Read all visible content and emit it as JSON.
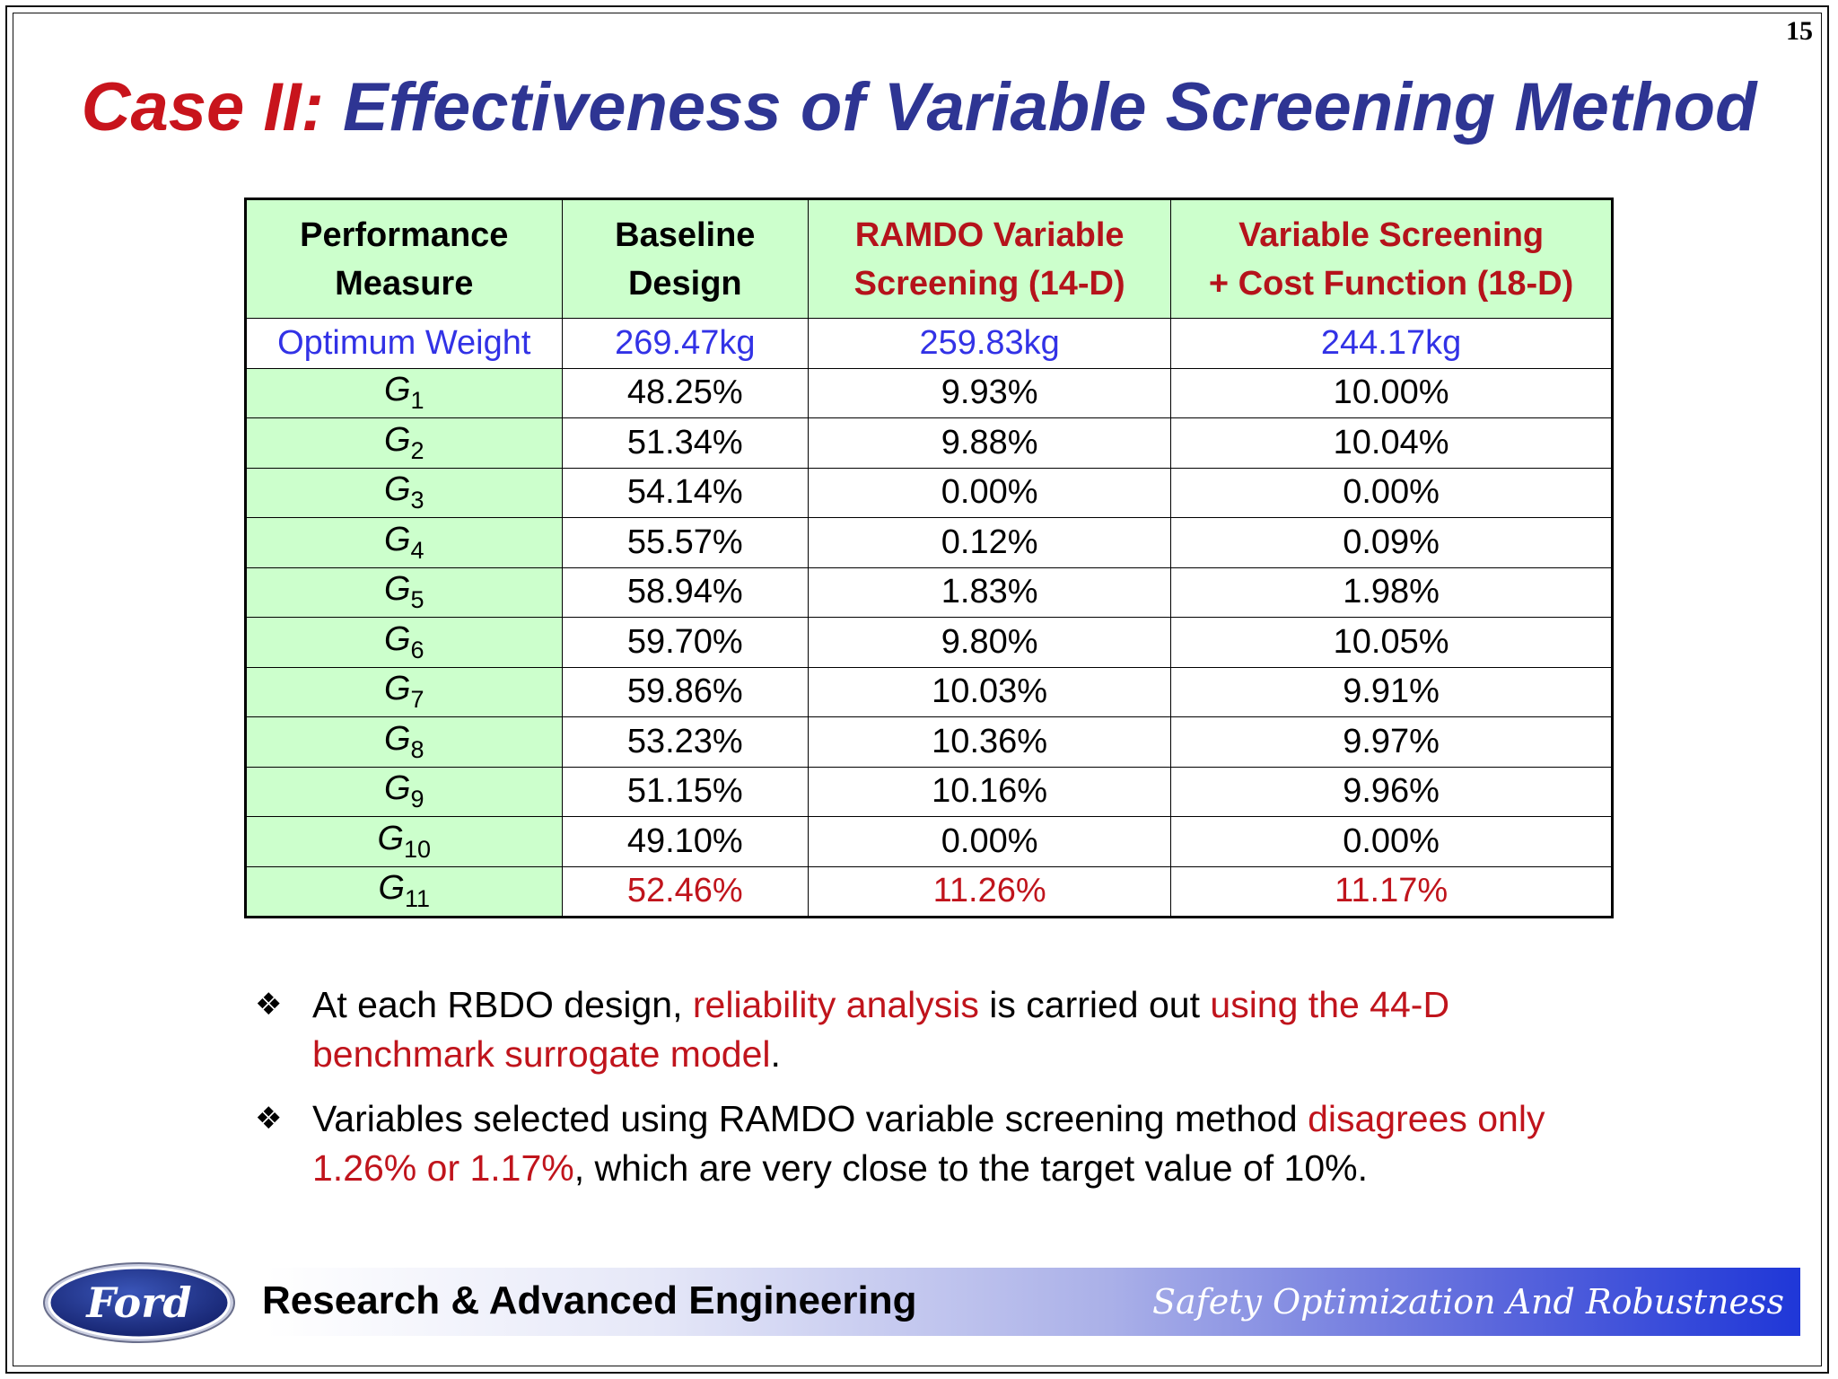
{
  "page_number": "15",
  "title": {
    "part1": "Case II:",
    "part2": "Effectiveness of Variable Screening Method"
  },
  "table": {
    "headers": [
      {
        "line1": "Performance",
        "line2": "Measure"
      },
      {
        "line1": "Baseline",
        "line2": "Design"
      },
      {
        "line1": "RAMDO Variable",
        "line2": "Screening (14-D)"
      },
      {
        "line1": "Variable Screening",
        "line2": "+ Cost Function (18-D)"
      }
    ],
    "weight_row": {
      "label": "Optimum Weight",
      "values": [
        "269.47kg",
        "259.83kg",
        "244.17kg"
      ]
    },
    "rows": [
      {
        "symbol": "G",
        "sub": "1",
        "values": [
          "48.25%",
          "9.93%",
          "10.00%"
        ]
      },
      {
        "symbol": "G",
        "sub": "2",
        "values": [
          "51.34%",
          "9.88%",
          "10.04%"
        ]
      },
      {
        "symbol": "G",
        "sub": "3",
        "values": [
          "54.14%",
          "0.00%",
          "0.00%"
        ]
      },
      {
        "symbol": "G",
        "sub": "4",
        "values": [
          "55.57%",
          "0.12%",
          "0.09%"
        ]
      },
      {
        "symbol": "G",
        "sub": "5",
        "values": [
          "58.94%",
          "1.83%",
          "1.98%"
        ]
      },
      {
        "symbol": "G",
        "sub": "6",
        "values": [
          "59.70%",
          "9.80%",
          "10.05%"
        ]
      },
      {
        "symbol": "G",
        "sub": "7",
        "values": [
          "59.86%",
          "10.03%",
          "9.91%"
        ]
      },
      {
        "symbol": "G",
        "sub": "8",
        "values": [
          "53.23%",
          "10.36%",
          "9.97%"
        ]
      },
      {
        "symbol": "G",
        "sub": "9",
        "values": [
          "51.15%",
          "10.16%",
          "9.96%"
        ]
      },
      {
        "symbol": "G",
        "sub": "10",
        "values": [
          "49.10%",
          "0.00%",
          "0.00%"
        ]
      },
      {
        "symbol": "G",
        "sub": "11",
        "values": [
          "52.46%",
          "11.26%",
          "11.17%"
        ]
      }
    ]
  },
  "bullets": [
    {
      "mark": "❖",
      "a": "At each RBDO design, ",
      "b": "reliability analysis",
      "c": " is carried out ",
      "d": "using the 44-D benchmark surrogate model",
      "e": "."
    },
    {
      "mark": "❖",
      "a": "Variables selected using RAMDO variable screening method ",
      "b": "disagrees only 1.26% or 1.17%",
      "c": ", which are very close to the target value of 10%."
    }
  ],
  "footer": {
    "logo_text": "Ford",
    "left": "Research & Advanced Engineering",
    "right": "Safety Optimization And Robustness"
  },
  "colors": {
    "title_red": "#c8141c",
    "title_blue": "#2e3593",
    "header_green": "#ccffcc",
    "value_blue": "#3232e6",
    "highlight_red": "#c0141c",
    "ford_blue": "#1e2f7a"
  }
}
